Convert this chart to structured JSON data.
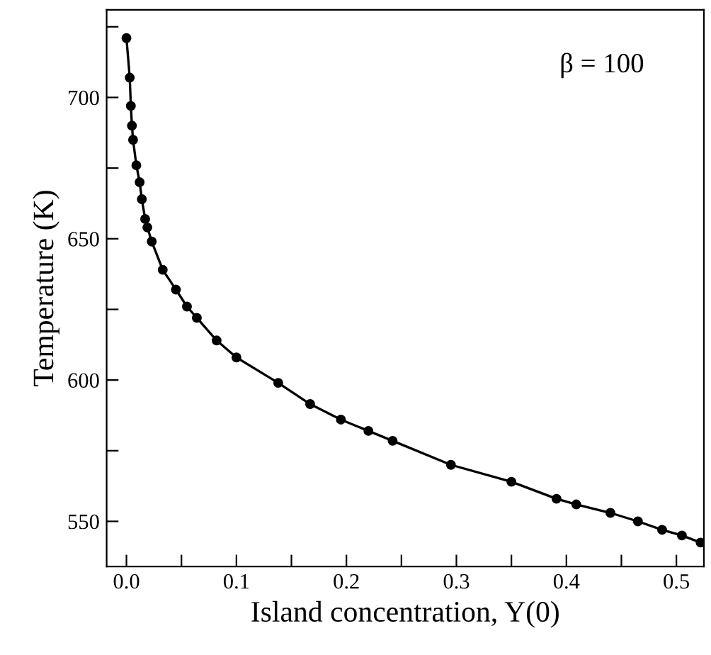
{
  "chart_data": {
    "type": "line",
    "xlabel": "Island concentration, Y(0)",
    "ylabel": "Temperature (K)",
    "annotations": [
      "β = 100"
    ],
    "series": [
      {
        "color": "#000000",
        "x": [
          0,
          0.003,
          0.004,
          0.005,
          0.006,
          0.009,
          0.012,
          0.014,
          0.017,
          0.019,
          0.023,
          0.033,
          0.045,
          0.055,
          0.064,
          0.082,
          0.1,
          0.138,
          0.167,
          0.195,
          0.22,
          0.242,
          0.295,
          0.35,
          0.391,
          0.409,
          0.44,
          0.465,
          0.487,
          0.505,
          0.522
        ],
        "values": [
          721,
          707,
          697,
          690,
          685,
          676,
          670,
          664,
          657,
          654,
          649,
          639,
          632,
          626,
          622,
          614,
          608,
          599,
          591.5,
          586,
          582,
          578.5,
          570,
          564,
          558,
          556,
          553,
          550,
          547,
          545,
          542.5
        ]
      }
    ],
    "marker": "circle",
    "line_style": "solid",
    "grid": false,
    "legend": false,
    "xlim": [
      -0.018,
      0.525
    ],
    "ylim": [
      534,
      731
    ],
    "xticks": [
      {
        "value": 0,
        "label": "0.0"
      },
      {
        "value": 0.05,
        "label": null
      },
      0.1,
      {
        "value": 0.15,
        "label": null
      },
      0.2,
      {
        "value": 0.25,
        "label": null
      },
      0.3,
      {
        "value": 0.35,
        "label": null
      },
      0.4,
      {
        "value": 0.45,
        "label": null
      },
      0.5
    ],
    "yticks": [
      550,
      {
        "value": 575,
        "label": null
      },
      600,
      {
        "value": 625,
        "label": null
      },
      650,
      {
        "value": 675,
        "label": null
      },
      700,
      {
        "value": 725,
        "label": null
      }
    ]
  }
}
